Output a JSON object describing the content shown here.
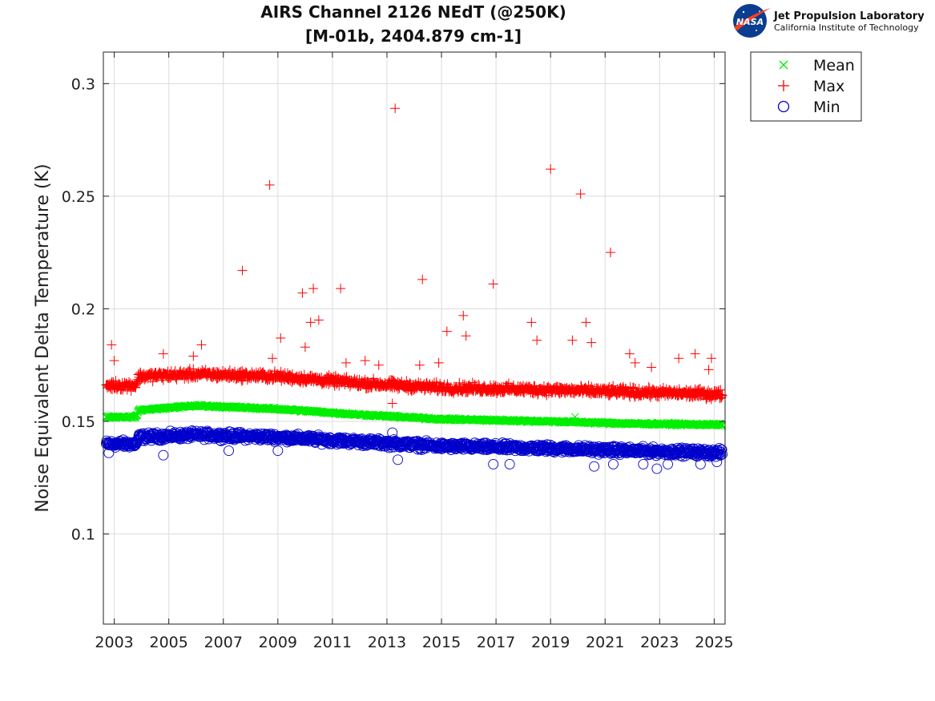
{
  "logo": {
    "badge": "NASA",
    "name": "Jet Propulsion Laboratory",
    "subtitle": "California Institute of Technology"
  },
  "chart_data": {
    "type": "scatter",
    "title": [
      "AIRS Channel 2126 NEdT (@250K)",
      "[M-01b, 2404.879 cm-1]"
    ],
    "xlabel": "",
    "ylabel": "Noise Equivalent Delta Temperature (K)",
    "xlim": [
      2002.6,
      2025.4
    ],
    "ylim": [
      0.06,
      0.314
    ],
    "xticks": [
      2003,
      2005,
      2007,
      2009,
      2011,
      2013,
      2015,
      2017,
      2019,
      2021,
      2023,
      2025
    ],
    "yticks": [
      0.1,
      0.15,
      0.2,
      0.25,
      0.3
    ],
    "ytick_labels": [
      "0.1",
      "0.15",
      "0.2",
      "0.25",
      "0.3"
    ],
    "grid": true,
    "legend_position": "outside-top-right",
    "colors": {
      "Mean": "#00ee00",
      "Max": "#ff0000",
      "Min": "#0000cc"
    },
    "series": [
      {
        "name": "Mean",
        "marker": "x",
        "trend": [
          [
            2002.7,
            0.152
          ],
          [
            2003.8,
            0.152
          ],
          [
            2003.9,
            0.155
          ],
          [
            2006.0,
            0.157
          ],
          [
            2009.0,
            0.1555
          ],
          [
            2012.0,
            0.153
          ],
          [
            2015.0,
            0.151
          ],
          [
            2019.0,
            0.15
          ],
          [
            2022.0,
            0.149
          ],
          [
            2025.3,
            0.1485
          ]
        ],
        "spread": 0.0008,
        "outliers": [
          [
            2006.9,
            0.157
          ],
          [
            2019.9,
            0.152
          ]
        ]
      },
      {
        "name": "Max",
        "marker": "+",
        "trend": [
          [
            2002.7,
            0.166
          ],
          [
            2003.8,
            0.166
          ],
          [
            2003.9,
            0.17
          ],
          [
            2006.0,
            0.171
          ],
          [
            2009.0,
            0.17
          ],
          [
            2012.0,
            0.167
          ],
          [
            2015.0,
            0.165
          ],
          [
            2019.0,
            0.164
          ],
          [
            2022.0,
            0.163
          ],
          [
            2025.3,
            0.162
          ]
        ],
        "spread": 0.003,
        "outliers": [
          [
            2002.9,
            0.184
          ],
          [
            2003.0,
            0.177
          ],
          [
            2004.8,
            0.18
          ],
          [
            2006.2,
            0.184
          ],
          [
            2005.9,
            0.179
          ],
          [
            2007.7,
            0.217
          ],
          [
            2008.7,
            0.255
          ],
          [
            2008.8,
            0.178
          ],
          [
            2009.1,
            0.187
          ],
          [
            2009.9,
            0.207
          ],
          [
            2010.0,
            0.183
          ],
          [
            2010.3,
            0.209
          ],
          [
            2010.2,
            0.194
          ],
          [
            2010.5,
            0.195
          ],
          [
            2011.3,
            0.209
          ],
          [
            2011.5,
            0.176
          ],
          [
            2012.2,
            0.177
          ],
          [
            2012.7,
            0.175
          ],
          [
            2013.3,
            0.289
          ],
          [
            2013.2,
            0.158
          ],
          [
            2014.3,
            0.213
          ],
          [
            2014.2,
            0.175
          ],
          [
            2014.9,
            0.176
          ],
          [
            2015.2,
            0.19
          ],
          [
            2015.8,
            0.197
          ],
          [
            2015.9,
            0.188
          ],
          [
            2016.9,
            0.211
          ],
          [
            2018.3,
            0.194
          ],
          [
            2018.5,
            0.186
          ],
          [
            2019.0,
            0.262
          ],
          [
            2019.8,
            0.186
          ],
          [
            2020.1,
            0.251
          ],
          [
            2020.3,
            0.194
          ],
          [
            2020.5,
            0.185
          ],
          [
            2021.2,
            0.225
          ],
          [
            2021.9,
            0.18
          ],
          [
            2022.1,
            0.176
          ],
          [
            2022.7,
            0.174
          ],
          [
            2023.7,
            0.178
          ],
          [
            2024.3,
            0.18
          ],
          [
            2024.9,
            0.178
          ],
          [
            2024.8,
            0.173
          ]
        ]
      },
      {
        "name": "Min",
        "marker": "o",
        "trend": [
          [
            2002.7,
            0.14
          ],
          [
            2003.8,
            0.14
          ],
          [
            2003.9,
            0.143
          ],
          [
            2006.0,
            0.144
          ],
          [
            2009.0,
            0.143
          ],
          [
            2012.0,
            0.141
          ],
          [
            2015.0,
            0.139
          ],
          [
            2019.0,
            0.138
          ],
          [
            2022.0,
            0.137
          ],
          [
            2025.3,
            0.136
          ]
        ],
        "spread": 0.0025,
        "outliers": [
          [
            2002.8,
            0.136
          ],
          [
            2004.8,
            0.135
          ],
          [
            2007.2,
            0.137
          ],
          [
            2009.0,
            0.137
          ],
          [
            2013.2,
            0.145
          ],
          [
            2013.4,
            0.133
          ],
          [
            2016.9,
            0.131
          ],
          [
            2017.5,
            0.131
          ],
          [
            2020.6,
            0.13
          ],
          [
            2021.3,
            0.131
          ],
          [
            2022.4,
            0.131
          ],
          [
            2022.9,
            0.129
          ],
          [
            2023.3,
            0.131
          ],
          [
            2024.5,
            0.131
          ],
          [
            2025.1,
            0.132
          ]
        ]
      }
    ]
  }
}
